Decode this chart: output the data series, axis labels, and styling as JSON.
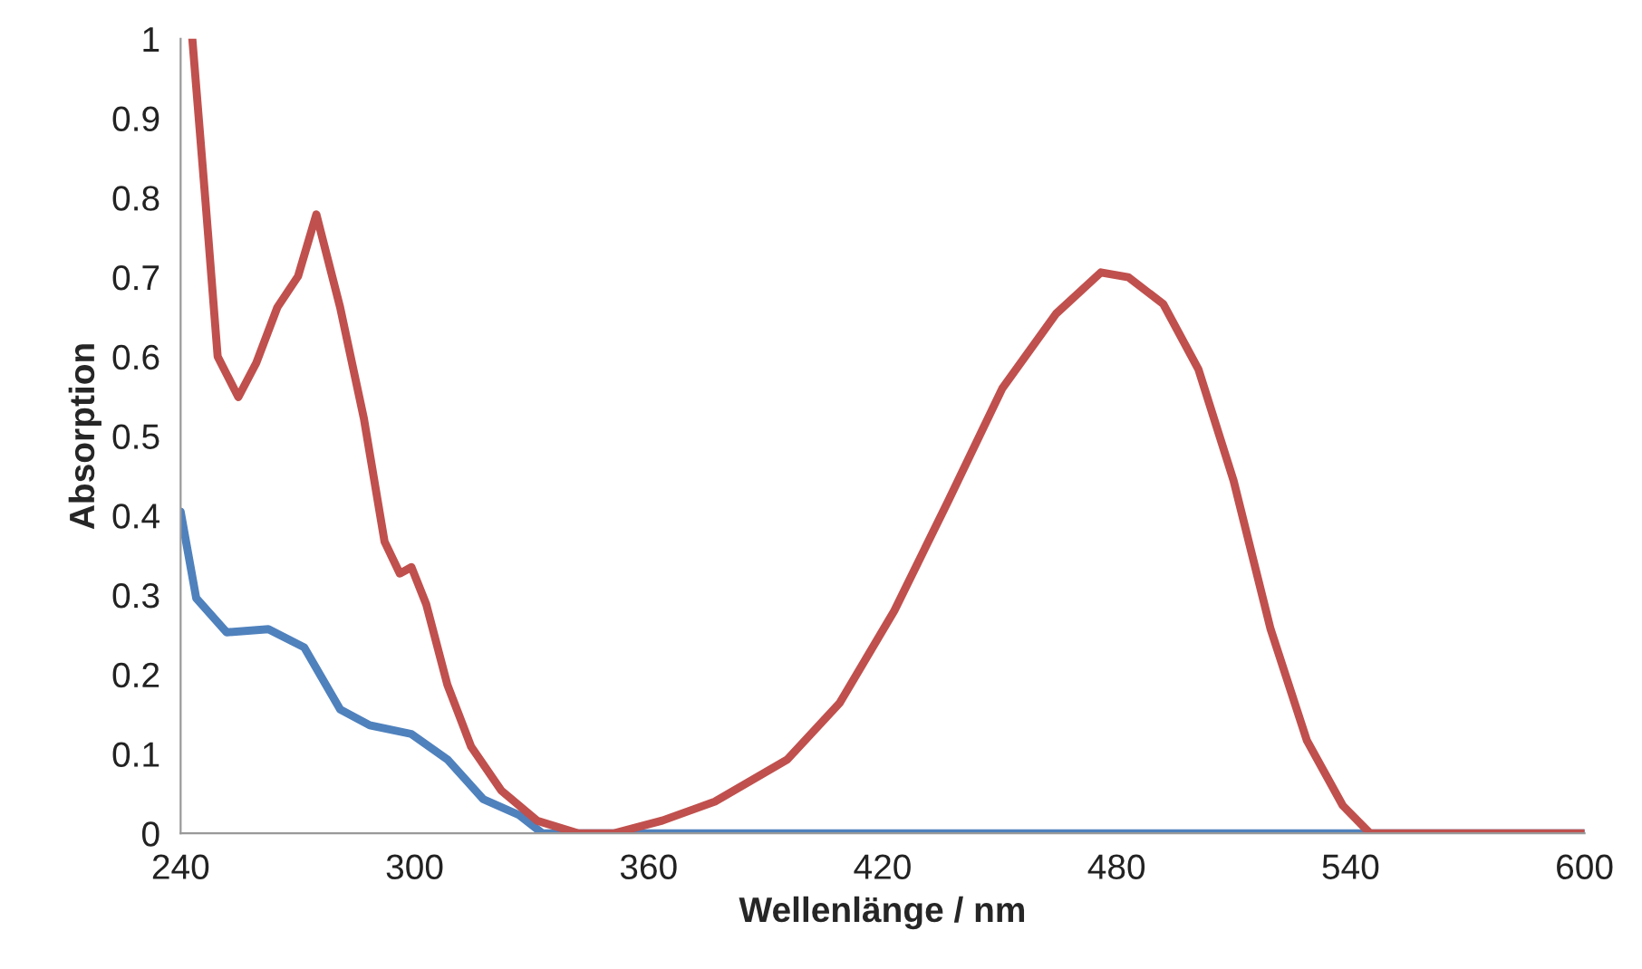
{
  "chart_data": {
    "type": "line",
    "xlabel": "Wellenlänge / nm",
    "ylabel": "Absorption",
    "xlim": [
      240,
      600
    ],
    "xticks": [
      240,
      300,
      360,
      420,
      480,
      540,
      600
    ],
    "ylim": [
      0,
      1
    ],
    "yticks": [
      0,
      0.1,
      0.2,
      0.3,
      0.4,
      0.5,
      0.6,
      0.7,
      0.8,
      0.9,
      1
    ],
    "grid": false,
    "marker": "none",
    "line_style": "solid",
    "series": [
      {
        "color": "#4f81bd",
        "x": [
          240,
          244,
          251.8,
          262.5,
          271.7,
          280.9,
          288.5,
          299.2,
          308.4,
          317.6,
          326.8,
          332.8,
          400,
          500,
          600
        ],
        "values": [
          0.405,
          0.296,
          0.253,
          0.257,
          0.234,
          0.156,
          0.136,
          0.125,
          0.093,
          0.043,
          0.023,
          0,
          0,
          0,
          0
        ]
      },
      {
        "color": "#c0504d",
        "x": [
          243,
          246.4,
          249.5,
          254.8,
          259.4,
          264.8,
          270.1,
          274.8,
          280.9,
          287,
          292.3,
          296.2,
          299.2,
          303,
          308.4,
          314.5,
          322.2,
          331.4,
          342,
          351,
          363.5,
          377,
          395.6,
          409,
          423,
          437,
          450.7,
          464.5,
          476,
          483,
          492,
          501,
          510,
          519.5,
          528.8,
          538,
          545,
          570,
          600
        ],
        "values": [
          1.0,
          0.794,
          0.6,
          0.549,
          0.592,
          0.662,
          0.701,
          0.779,
          0.662,
          0.522,
          0.367,
          0.327,
          0.335,
          0.288,
          0.187,
          0.109,
          0.054,
          0.016,
          0,
          0,
          0.016,
          0.04,
          0.093,
          0.164,
          0.28,
          0.42,
          0.56,
          0.654,
          0.706,
          0.7,
          0.666,
          0.584,
          0.444,
          0.257,
          0.117,
          0.035,
          0,
          0,
          0
        ]
      }
    ]
  }
}
